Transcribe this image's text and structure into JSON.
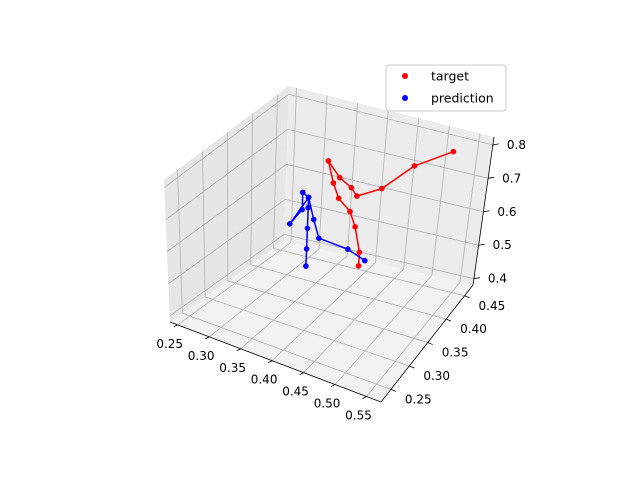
{
  "chart_data": {
    "type": "scatter",
    "projection": "3d",
    "grid": true,
    "legend_position": "top-right",
    "axes": {
      "x": {
        "ticks": [
          "0.25",
          "0.30",
          "0.35",
          "0.40",
          "0.45",
          "0.50",
          "0.55"
        ]
      },
      "y": {
        "ticks": [
          "0.25",
          "0.30",
          "0.35",
          "0.40",
          "0.45"
        ]
      },
      "z": {
        "ticks": [
          "0.4",
          "0.5",
          "0.6",
          "0.7",
          "0.8"
        ]
      }
    },
    "series": [
      {
        "name": "target",
        "color": "#ff0000",
        "points": [
          [
            0.4,
            0.43,
            0.42
          ],
          [
            0.4,
            0.43,
            0.46
          ],
          [
            0.39,
            0.43,
            0.53
          ],
          [
            0.38,
            0.43,
            0.57
          ],
          [
            0.36,
            0.43,
            0.6
          ],
          [
            0.35,
            0.43,
            0.64
          ],
          [
            0.34,
            0.43,
            0.7
          ],
          [
            0.36,
            0.43,
            0.66
          ],
          [
            0.38,
            0.43,
            0.64
          ],
          [
            0.39,
            0.43,
            0.62
          ],
          [
            0.43,
            0.43,
            0.66
          ],
          [
            0.48,
            0.43,
            0.75
          ],
          [
            0.54,
            0.43,
            0.82
          ]
        ]
      },
      {
        "name": "prediction",
        "color": "#0000ff",
        "points": [
          [
            0.31,
            0.43,
            0.38
          ],
          [
            0.31,
            0.43,
            0.43
          ],
          [
            0.31,
            0.43,
            0.49
          ],
          [
            0.31,
            0.43,
            0.55
          ],
          [
            0.31,
            0.43,
            0.58
          ],
          [
            0.3,
            0.43,
            0.59
          ],
          [
            0.3,
            0.43,
            0.54
          ],
          [
            0.28,
            0.43,
            0.49
          ],
          [
            0.31,
            0.43,
            0.58
          ],
          [
            0.32,
            0.43,
            0.52
          ],
          [
            0.33,
            0.43,
            0.47
          ],
          [
            0.38,
            0.43,
            0.46
          ],
          [
            0.41,
            0.43,
            0.44
          ]
        ]
      }
    ]
  }
}
